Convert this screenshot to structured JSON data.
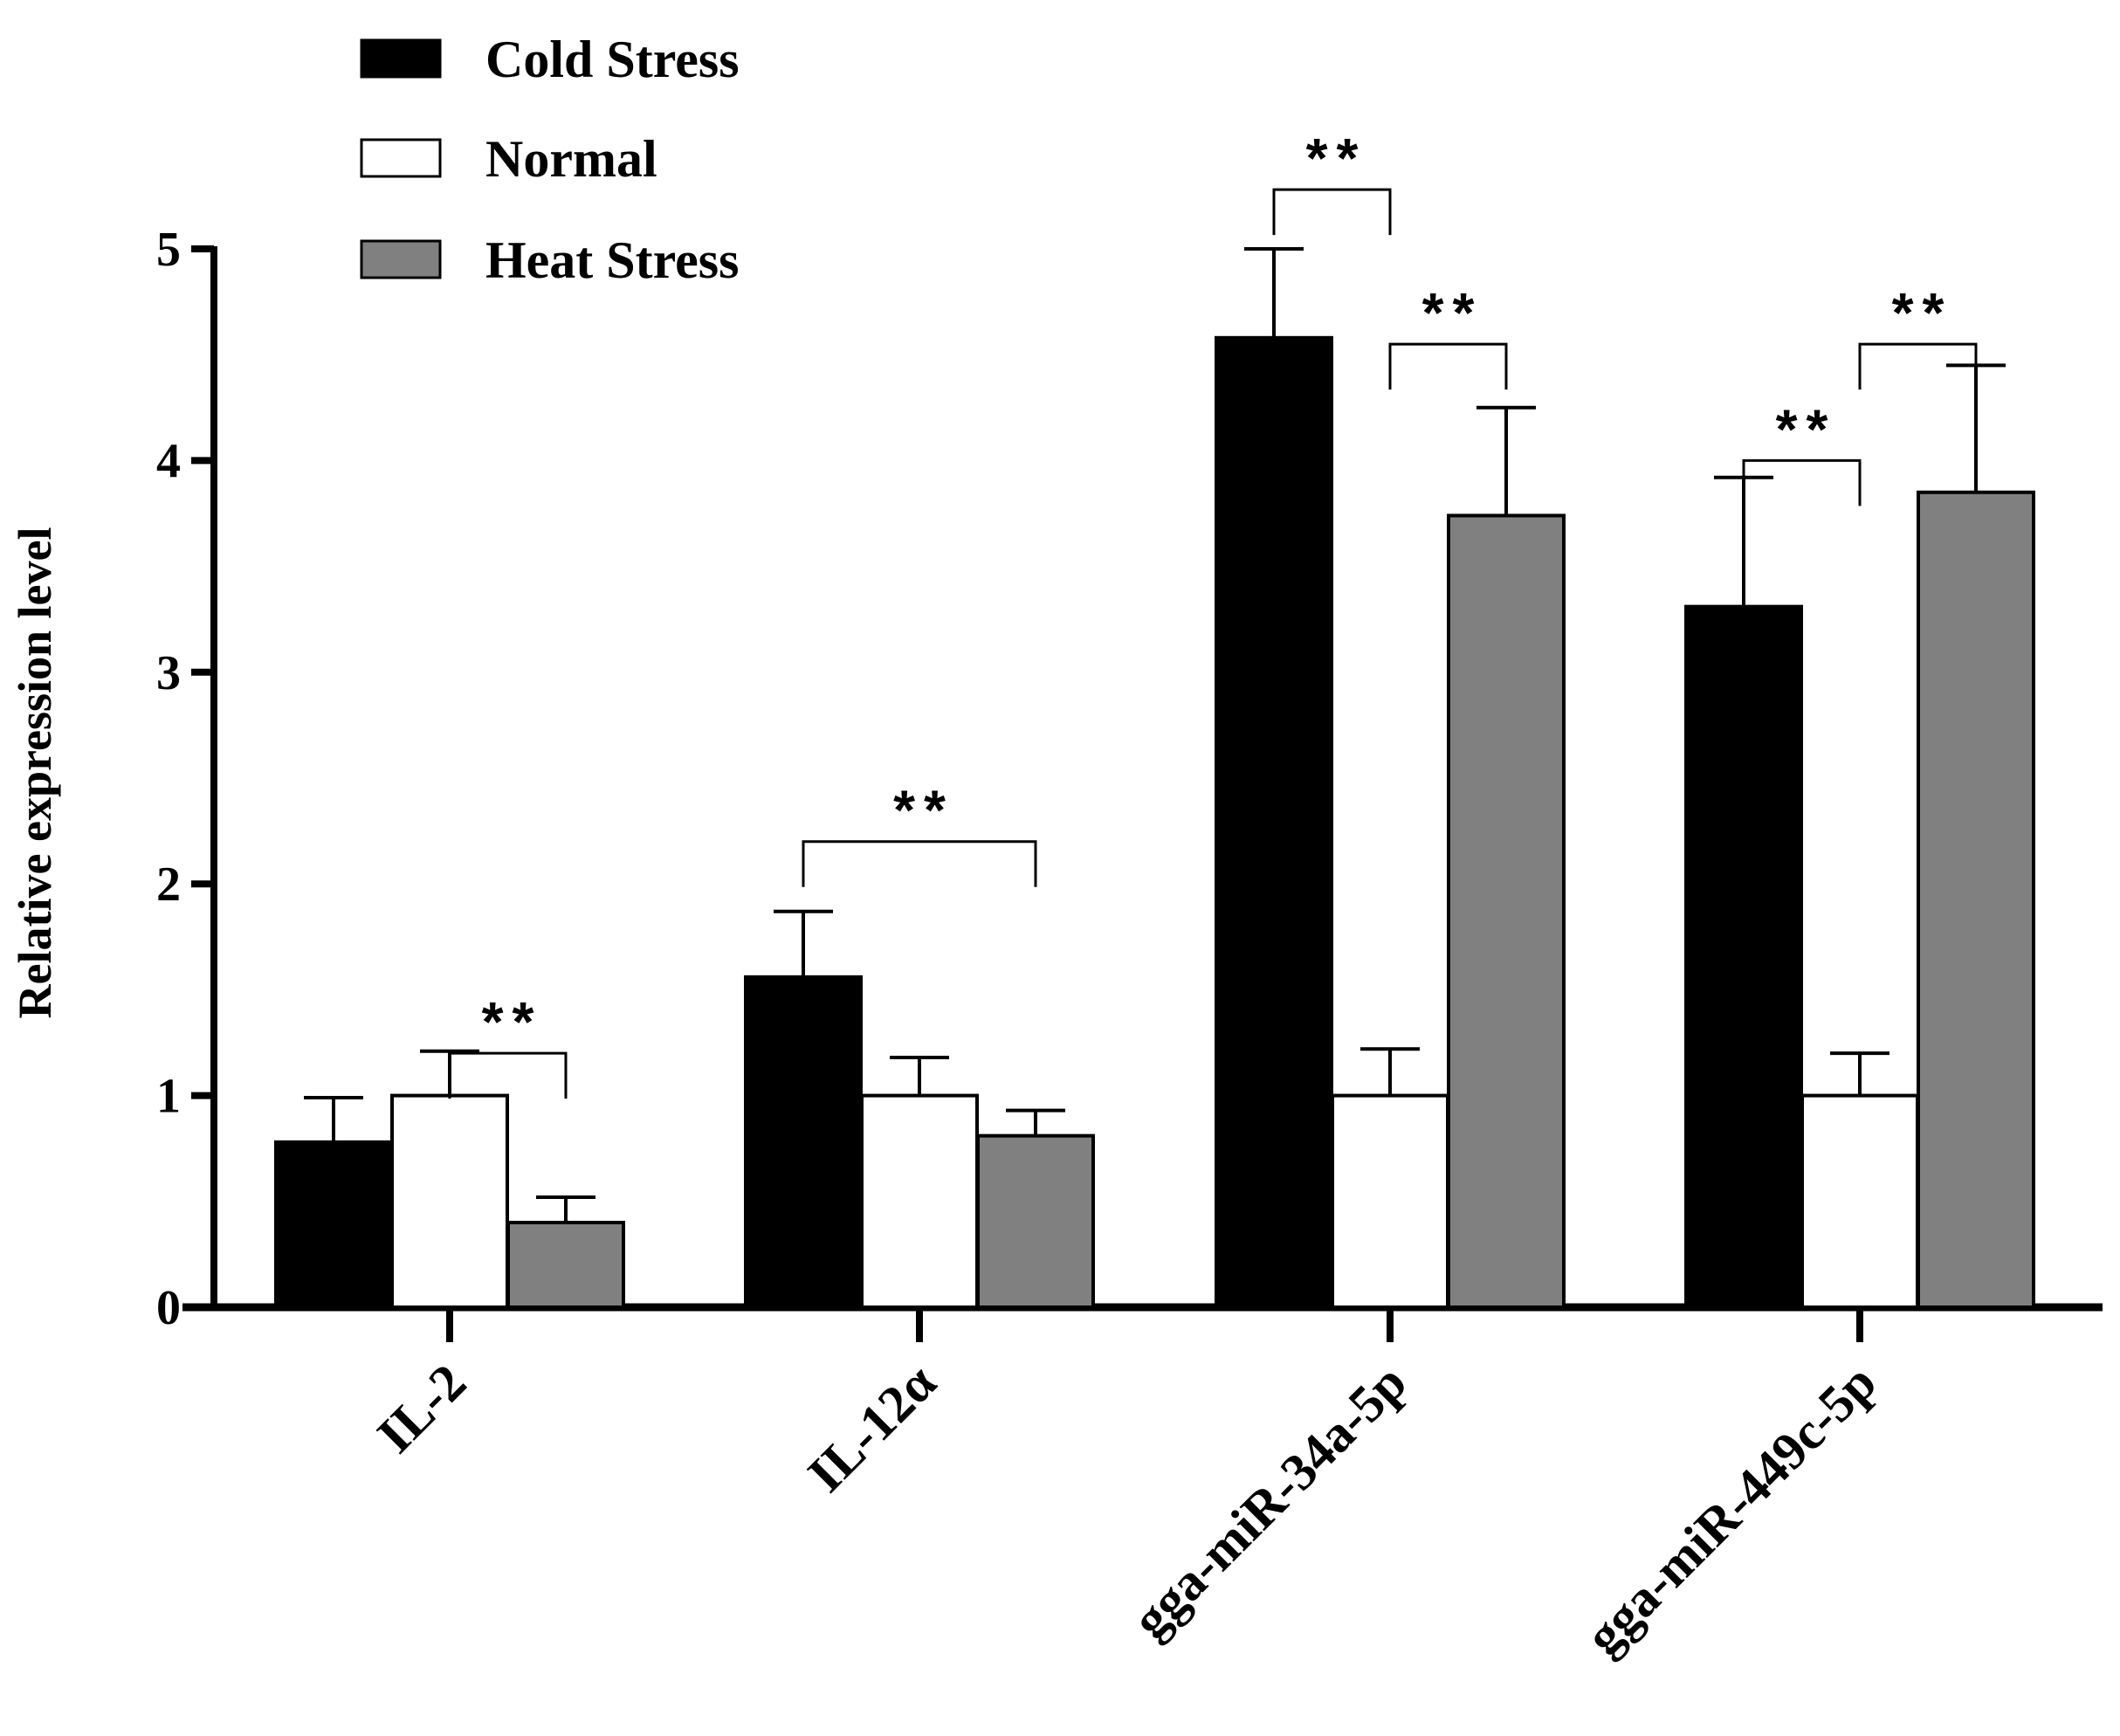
{
  "chart_data": {
    "type": "bar",
    "title": "",
    "xlabel": "",
    "ylabel": "Relative expression level",
    "ylim": [
      0,
      5
    ],
    "yticks": [
      "0",
      "1",
      "2",
      "3",
      "4",
      "5"
    ],
    "categories": [
      "IL-2",
      "IL-12α",
      "gga-miR-34a-5p",
      "gga-miR-449c-5p"
    ],
    "series": [
      {
        "name": "Cold Stress",
        "color": "#000000",
        "values": [
          0.78,
          1.56,
          4.58,
          3.31
        ],
        "errors": [
          0.21,
          0.31,
          0.42,
          0.61
        ]
      },
      {
        "name": "Normal",
        "color": "#ffffff",
        "values": [
          1.0,
          1.0,
          1.0,
          1.0
        ],
        "errors": [
          0.21,
          0.18,
          0.22,
          0.2
        ]
      },
      {
        "name": "Heat Stress",
        "color": "#808080",
        "values": [
          0.4,
          0.81,
          3.74,
          3.85
        ],
        "errors": [
          0.12,
          0.12,
          0.51,
          0.6
        ]
      }
    ],
    "legend": {
      "position": "top-left"
    },
    "significance": [
      {
        "category": 0,
        "from": 1,
        "to": 2,
        "level": 1.2,
        "label": "**"
      },
      {
        "category": 1,
        "from": 0,
        "to": 2,
        "level": 2.2,
        "label": "**"
      },
      {
        "category": 2,
        "from": 0,
        "to": 1,
        "level": 5.28,
        "label": "**"
      },
      {
        "category": 2,
        "from": 1,
        "to": 2,
        "level": 4.55,
        "label": "**"
      },
      {
        "category": 3,
        "from": 0,
        "to": 1,
        "level": 4.0,
        "label": "**"
      },
      {
        "category": 3,
        "from": 1,
        "to": 2,
        "level": 4.55,
        "label": "**"
      }
    ]
  }
}
